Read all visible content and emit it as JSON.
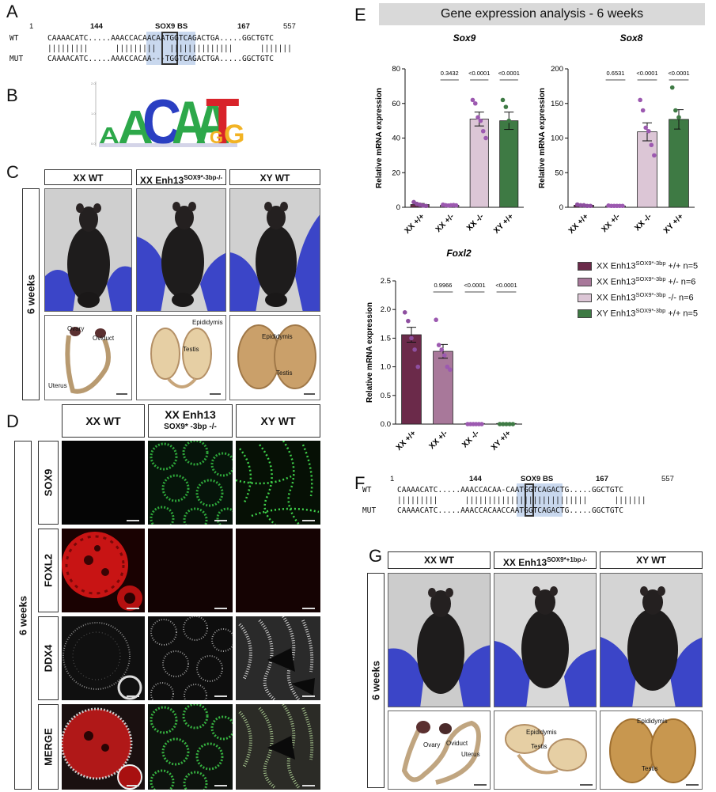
{
  "panel_letters": {
    "a": "A",
    "b": "B",
    "c": "C",
    "d": "D",
    "e": "E",
    "f": "F",
    "g": "G"
  },
  "seqA": {
    "pos": {
      "p1": "1",
      "p144": "144",
      "p167": "167",
      "p557": "557"
    },
    "bs_label": "SOX9 BS",
    "wt_label": "WT",
    "mut_label": "MUT",
    "wt_seq": "CAAAACATC.....AAACCACAACAATGGTCAGACTGA.....GGCTGTC",
    "bars": "|||||||||      |||||||||   ||||||||||||||      |||||||",
    "mut_seq": "CAAAACATC.....AAACCACAA---TGGTCAGACTGA.....GGCTGTC"
  },
  "seqF": {
    "pos": {
      "p1": "1",
      "p144": "144",
      "p167": "167",
      "p557": "557"
    },
    "bs_label": "SOX9 BS",
    "wt_label": "WT",
    "mut_label": "MUT",
    "wt_seq": "CAAAACATC.....AAACCACAA-CAATGGTCAGACTG.....GGCTGTC",
    "bars": "|||||||||      |||||||||||||||||||||||||||      |||||||",
    "mut_seq": "CAAAACATC.....AAACCACAACCAATGGTCAGACTG.....GGCTGTC"
  },
  "logo": {
    "letters": [
      "A",
      "A",
      "C",
      "A",
      "A",
      "T",
      "G",
      "G"
    ]
  },
  "panelC": {
    "headers": {
      "xxwt": "XX WT",
      "enh": "XX Enh13",
      "enh_sup": "SOX9*-3bp-/-",
      "xywt": "XY WT"
    },
    "age": "6 weeks",
    "anno": {
      "ovary": "Ovary",
      "oviduct": "Oviduct",
      "uterus": "Uterus",
      "epididymis1": "Epididymis",
      "testis1": "Testis",
      "epididymis2": "Epididymis",
      "testis2": "Testis"
    }
  },
  "panelD": {
    "headers": {
      "xxwt": "XX WT",
      "enh": "XX Enh13",
      "enh_sub": "SOX9* -3bp -/-",
      "xywt": "XY WT"
    },
    "age": "6 weeks",
    "rows": [
      "SOX9",
      "FOXL2",
      "DDX4",
      "MERGE"
    ]
  },
  "panelG": {
    "headers": {
      "xxwt": "XX WT",
      "enh": "XX Enh13",
      "enh_sup": "SOX9*+1bp-/-",
      "xywt": "XY WT"
    },
    "age": "6 weeks",
    "anno": {
      "ovary": "Ovary",
      "oviduct": "Oviduct",
      "uterus": "Uterus",
      "epididymis1": "Epididymis",
      "testis1": "Testis",
      "epididymis2": "Epididymis",
      "testis2": "Testis"
    }
  },
  "panelE": {
    "title": "Gene expression analysis - 6 weeks",
    "legend": [
      {
        "pre": "XX Enh13",
        "sup": "SOX9*-3bp",
        "post": " +/+ n=5",
        "color": "#6b2a4a"
      },
      {
        "pre": "XX Enh13",
        "sup": "SOX9*-3bp",
        "post": " +/- n=6",
        "color": "#a8789a"
      },
      {
        "pre": "XX Enh13",
        "sup": "SOX9*-3bp",
        "post": " -/-  n=6",
        "color": "#dcc6d6"
      },
      {
        "pre": "XY Enh13",
        "sup": "SOX9*-3bp",
        "post": " +/+ n=5",
        "color": "#3e7a44"
      }
    ]
  },
  "chart_data": [
    {
      "type": "bar",
      "title": "Sox9",
      "ylabel": "Relative mRNA expression",
      "categories": [
        "XX +/+",
        "XX +/-",
        "XX -/-",
        "XY +/+"
      ],
      "values": [
        1.6,
        1.2,
        51,
        50
      ],
      "errors": [
        0.6,
        0.3,
        4,
        5
      ],
      "points": [
        [
          3,
          2,
          1.5,
          1,
          0.8
        ],
        [
          1.5,
          1.2,
          1,
          1.2,
          1.3,
          1.1
        ],
        [
          62,
          60,
          52,
          50,
          44,
          40
        ],
        [
          62,
          58,
          50,
          48,
          39
        ]
      ],
      "pvalues": [
        "0.3432",
        "<0.0001",
        "<0.0001"
      ],
      "ylim": [
        0,
        80
      ],
      "yticks": [
        "0",
        "20",
        "40",
        "60",
        "80"
      ],
      "colors": [
        "#6b2a4a",
        "#a8789a",
        "#dcc6d6",
        "#3e7a44"
      ]
    },
    {
      "type": "bar",
      "title": "Sox8",
      "ylabel": "Relative mRNA expression",
      "categories": [
        "XX +/+",
        "XX +/-",
        "XX -/-",
        "XY +/+"
      ],
      "values": [
        3,
        2,
        109,
        127
      ],
      "errors": [
        0.6,
        0.4,
        13,
        14
      ],
      "points": [
        [
          4,
          3,
          3,
          2,
          2
        ],
        [
          2.5,
          2,
          2,
          2,
          2,
          2
        ],
        [
          155,
          140,
          115,
          110,
          90,
          75
        ],
        [
          173,
          140,
          130,
          115,
          80
        ]
      ],
      "pvalues": [
        "0.6531",
        "<0.0001",
        "<0.0001"
      ],
      "ylim": [
        0,
        200
      ],
      "yticks": [
        "0",
        "50",
        "100",
        "150",
        "200"
      ],
      "colors": [
        "#6b2a4a",
        "#a8789a",
        "#dcc6d6",
        "#3e7a44"
      ]
    },
    {
      "type": "bar",
      "title": "Foxl2",
      "ylabel": "Relative mRNA expression",
      "categories": [
        "XX +/+",
        "XX +/-",
        "XX -/-",
        "XY +/+"
      ],
      "values": [
        1.56,
        1.27,
        0.01,
        0.01
      ],
      "errors": [
        0.13,
        0.12,
        0,
        0
      ],
      "points": [
        [
          1.95,
          1.8,
          1.5,
          1.3,
          1.0
        ],
        [
          1.82,
          1.38,
          1.3,
          1.2,
          1.0,
          0.95
        ],
        [
          0,
          0,
          0,
          0,
          0,
          0
        ],
        [
          0,
          0,
          0,
          0,
          0
        ]
      ],
      "pvalues": [
        "0.9966",
        "<0.0001",
        "<0.0001"
      ],
      "ylim": [
        0,
        2.5
      ],
      "yticks": [
        "0.0",
        "0.5",
        "1.0",
        "1.5",
        "2.0",
        "2.5"
      ],
      "colors": [
        "#6b2a4a",
        "#a8789a",
        "#dcc6d6",
        "#3e7a44"
      ]
    }
  ]
}
